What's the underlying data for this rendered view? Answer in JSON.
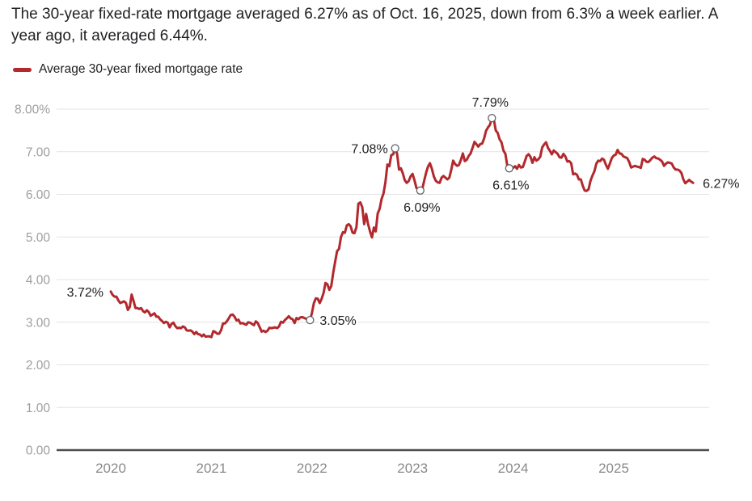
{
  "colors": {
    "line": "#b2282d",
    "marker_stroke": "#5f6368",
    "marker_fill": "#ffffff",
    "grid": "#e4e4e4",
    "axis_baseline": "#4d4d4d",
    "y_tick_text": "#9e9e9e",
    "x_tick_text": "#8a8a8a",
    "annotation_text": "#202124",
    "headline_text": "#202124",
    "background": "#ffffff"
  },
  "chart_data": {
    "type": "line",
    "title": "The 30-year fixed-rate mortgage averaged 6.27% as of Oct. 16, 2025, down from 6.3% a week earlier. A year ago, it averaged 6.44%.",
    "legend": {
      "label": "Average 30-year fixed mortgage rate",
      "position": "top-left"
    },
    "unit": "%",
    "ylim": [
      0,
      8
    ],
    "grid": true,
    "y_ticks": [
      {
        "value": 8,
        "label": "8.00%"
      },
      {
        "value": 7,
        "label": "7.00"
      },
      {
        "value": 6,
        "label": "6.00"
      },
      {
        "value": 5,
        "label": "5.00"
      },
      {
        "value": 4,
        "label": "4.00"
      },
      {
        "value": 3,
        "label": "3.00"
      },
      {
        "value": 2,
        "label": "2.00"
      },
      {
        "value": 1,
        "label": "1.00"
      },
      {
        "value": 0,
        "label": "0.00"
      }
    ],
    "x_ticks": [
      {
        "value": 2020,
        "label": "2020"
      },
      {
        "value": 2021,
        "label": "2021"
      },
      {
        "value": 2022,
        "label": "2022"
      },
      {
        "value": 2023,
        "label": "2023"
      },
      {
        "value": 2024,
        "label": "2024"
      },
      {
        "value": 2025,
        "label": "2025"
      }
    ],
    "series": [
      {
        "name": "Average 30-year fixed mortgage rate",
        "frequency": "weekly",
        "by_year": [
          {
            "year": 2020,
            "denom": 53,
            "values": [
              3.72,
              3.64,
              3.6,
              3.6,
              3.51,
              3.45,
              3.47,
              3.49,
              3.45,
              3.29,
              3.36,
              3.65,
              3.5,
              3.33,
              3.33,
              3.31,
              3.33,
              3.26,
              3.23,
              3.28,
              3.24,
              3.15,
              3.18,
              3.21,
              3.13,
              3.13,
              3.07,
              3.03,
              2.98,
              3.01,
              2.99,
              2.88,
              2.96,
              2.99,
              2.91,
              2.86,
              2.87,
              2.86,
              2.9,
              2.88,
              2.81,
              2.8,
              2.81,
              2.78,
              2.72,
              2.77,
              2.72,
              2.71,
              2.67,
              2.71,
              2.66,
              2.67,
              2.67
            ]
          },
          {
            "year": 2021,
            "denom": 52,
            "values": [
              2.65,
              2.79,
              2.77,
              2.73,
              2.73,
              2.81,
              2.97,
              2.97,
              3.02,
              3.09,
              3.17,
              3.18,
              3.13,
              3.04,
              3.06,
              2.97,
              2.98,
              2.96,
              2.94,
              3.0,
              2.99,
              2.96,
              2.93,
              3.02,
              2.98,
              2.88,
              2.78,
              2.8,
              2.77,
              2.8,
              2.87,
              2.86,
              2.87,
              2.88,
              2.86,
              2.9,
              3.01,
              2.99,
              3.05,
              3.09,
              3.14,
              3.09,
              3.07,
              2.98,
              3.1,
              3.07,
              3.11,
              3.12,
              3.1,
              3.08,
              3.06,
              3.05
            ]
          },
          {
            "year": 2022,
            "denom": 52,
            "values": [
              3.22,
              3.45,
              3.56,
              3.55,
              3.45,
              3.55,
              3.69,
              3.92,
              3.89,
              3.76,
              3.85,
              4.16,
              4.42,
              4.67,
              4.72,
              5.0,
              5.11,
              5.1,
              5.27,
              5.3,
              5.25,
              5.1,
              5.09,
              5.23,
              5.78,
              5.81,
              5.7,
              5.3,
              5.54,
              5.3,
              5.13,
              4.99,
              5.22,
              5.13,
              5.55,
              5.66,
              5.89,
              6.02,
              6.29,
              6.7,
              6.66,
              6.92,
              6.94,
              7.08,
              6.95,
              6.58,
              6.61,
              6.49,
              6.33,
              6.27,
              6.31,
              6.42
            ]
          },
          {
            "year": 2023,
            "denom": 52,
            "values": [
              6.48,
              6.33,
              6.15,
              6.13,
              6.09,
              6.12,
              6.32,
              6.5,
              6.65,
              6.73,
              6.6,
              6.42,
              6.32,
              6.28,
              6.27,
              6.39,
              6.43,
              6.39,
              6.35,
              6.39,
              6.57,
              6.79,
              6.71,
              6.67,
              6.69,
              6.81,
              6.96,
              6.78,
              6.81,
              6.9,
              6.96,
              7.09,
              7.23,
              7.18,
              7.12,
              7.18,
              7.19,
              7.31,
              7.49,
              7.57,
              7.63,
              7.79,
              7.76,
              7.5,
              7.44,
              7.29,
              7.22,
              7.03,
              6.95,
              6.67,
              6.61,
              6.61
            ]
          },
          {
            "year": 2024,
            "denom": 52,
            "values": [
              6.62,
              6.66,
              6.6,
              6.69,
              6.63,
              6.64,
              6.77,
              6.9,
              6.94,
              6.88,
              6.74,
              6.87,
              6.79,
              6.82,
              6.88,
              7.1,
              7.17,
              7.22,
              7.09,
              7.02,
              6.94,
              7.03,
              6.99,
              6.95,
              6.87,
              6.86,
              6.95,
              6.89,
              6.77,
              6.78,
              6.73,
              6.47,
              6.49,
              6.46,
              6.35,
              6.35,
              6.2,
              6.09,
              6.08,
              6.12,
              6.32,
              6.44,
              6.54,
              6.72,
              6.79,
              6.78,
              6.84,
              6.81,
              6.69,
              6.6,
              6.72,
              6.85
            ]
          },
          {
            "year": 2025,
            "denom": 52,
            "values": [
              6.91,
              6.93,
              7.04,
              6.96,
              6.95,
              6.89,
              6.87,
              6.85,
              6.76,
              6.63,
              6.65,
              6.67,
              6.65,
              6.64,
              6.62,
              6.83,
              6.81,
              6.76,
              6.76,
              6.81,
              6.86,
              6.89,
              6.85,
              6.84,
              6.81,
              6.77,
              6.67,
              6.72,
              6.75,
              6.74,
              6.72,
              6.63,
              6.58,
              6.58,
              6.56,
              6.5,
              6.35,
              6.26,
              6.3,
              6.34,
              6.3,
              6.27
            ]
          }
        ]
      }
    ],
    "annotations": [
      {
        "label": "3.72%",
        "x": 2020.0,
        "value": 3.72,
        "position": "left",
        "marker": false
      },
      {
        "label": "3.05%",
        "x": 2021.9808,
        "value": 3.05,
        "position": "right",
        "marker": true
      },
      {
        "label": "7.08%",
        "x": 2022.8269,
        "value": 7.08,
        "position": "left",
        "marker": true
      },
      {
        "label": "6.09%",
        "x": 2023.0769,
        "value": 6.09,
        "position": "below",
        "marker": true
      },
      {
        "label": "7.79%",
        "x": 2023.7885,
        "value": 7.79,
        "position": "above",
        "marker": true
      },
      {
        "label": "6.61%",
        "x": 2023.9615,
        "value": 6.61,
        "position": "below",
        "marker": true
      },
      {
        "label": "6.27%",
        "x": 2025.7885,
        "value": 6.27,
        "position": "right",
        "marker": false
      }
    ]
  }
}
